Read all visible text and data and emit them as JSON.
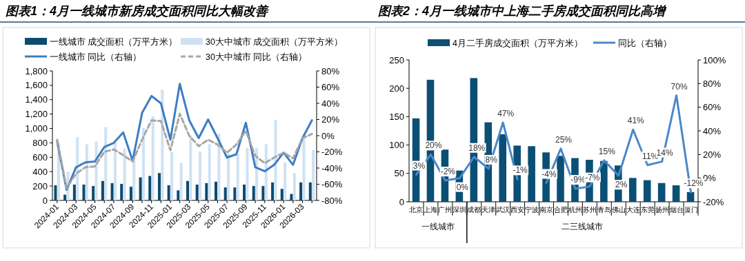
{
  "chart_data": [
    {
      "type": "bar",
      "title": "图表1：4月一线城市新房成交面积同比大幅改善",
      "legend": "top",
      "categories": [
        "2024-01",
        null,
        "2024-03",
        null,
        "2024-05",
        null,
        "2024-07",
        null,
        "2024-09",
        null,
        "2024-11",
        null,
        "2025-01",
        null,
        "2025-03",
        null,
        "2025-05",
        null,
        "2025-07",
        null,
        "2025-09",
        null,
        "2025-11",
        null,
        "2026-01",
        null,
        "2026-03",
        null
      ],
      "ylim": [
        0,
        1800
      ],
      "yticks": [
        0,
        200,
        400,
        600,
        800,
        {
          "value": 1000,
          "label": "1,000"
        },
        {
          "value": 1200,
          "label": "1,200"
        },
        {
          "value": 1400,
          "label": "1,400"
        },
        {
          "value": 1600,
          "label": "1,600"
        },
        {
          "value": 1800,
          "label": "1,800"
        }
      ],
      "y2lim": [
        -80,
        80
      ],
      "y2ticks": [
        {
          "value": -80,
          "label": "-80%"
        },
        {
          "value": -60,
          "label": "-60%"
        },
        {
          "value": -40,
          "label": "-40%"
        },
        {
          "value": -20,
          "label": "-20%"
        },
        {
          "value": 0,
          "label": "0%"
        },
        {
          "value": 20,
          "label": "20%"
        },
        {
          "value": 40,
          "label": "40%"
        },
        {
          "value": 60,
          "label": "60%"
        },
        {
          "value": 80,
          "label": "80%"
        }
      ],
      "series": [
        {
          "name": "一线城市 成交面积（万平方米）",
          "color": "#0d4a70",
          "values": [
            210,
            80,
            220,
            220,
            200,
            270,
            240,
            230,
            190,
            320,
            340,
            380,
            210,
            140,
            270,
            220,
            240,
            260,
            180,
            180,
            220,
            200,
            200,
            250,
            160,
            90,
            250,
            250
          ]
        },
        {
          "name": "30大中城市 成交面积（万平方米）",
          "color": "#cfe2f3",
          "values": [
            800,
            400,
            880,
            780,
            820,
            1020,
            800,
            720,
            690,
            1010,
            1170,
            1540,
            670,
            520,
            900,
            680,
            780,
            930,
            650,
            640,
            730,
            730,
            780,
            1120,
            530,
            380,
            870,
            700
          ]
        },
        {
          "name": "一线城市 同比（右轴）",
          "type": "line",
          "axis": "y2",
          "color": "#3d7dc4",
          "line_style": "solid",
          "values": [
            -7,
            -67,
            -39,
            -33,
            -32,
            -14,
            -9,
            4,
            -31,
            28,
            49,
            40,
            -5,
            64,
            19,
            -3,
            20,
            -3,
            -27,
            -23,
            16,
            -39,
            -44,
            -36,
            -21,
            -36,
            -3,
            19
          ]
        },
        {
          "name": "30大中城市 同比（右轴）",
          "type": "line",
          "axis": "y2",
          "color": "#a6a6a6",
          "line_style": "dashed",
          "values": [
            -5,
            -65,
            -47,
            -39,
            -38,
            -20,
            -17,
            -24,
            -32,
            -5,
            19,
            18,
            -18,
            27,
            0,
            -13,
            -5,
            -11,
            -21,
            -11,
            6,
            -25,
            -34,
            -27,
            -21,
            -28,
            -3,
            2
          ]
        }
      ]
    },
    {
      "type": "bar",
      "title": "图表2：4月一线城市中上海二手房成交面积同比高增",
      "legend": "top",
      "categories": [
        "北京",
        "上海",
        "广州",
        "深圳",
        "成都",
        "天津",
        "武汉",
        "西安",
        "宁波",
        "南京",
        "合肥",
        "杭州",
        "苏州",
        "青岛",
        "佛山",
        "大连",
        "东莞",
        "扬州",
        "烟台",
        "厦门"
      ],
      "annotations": [
        "一线城市",
        "二三线城市"
      ],
      "ylim": [
        0,
        250
      ],
      "yticks": [
        0,
        50,
        100,
        150,
        200,
        250
      ],
      "y2lim": [
        -20,
        100
      ],
      "y2ticks": [
        {
          "value": -20,
          "label": "-20%"
        },
        {
          "value": 0,
          "label": "0%"
        },
        {
          "value": 20,
          "label": "20%"
        },
        {
          "value": 40,
          "label": "40%"
        },
        {
          "value": 60,
          "label": "60%"
        },
        {
          "value": 80,
          "label": "80%"
        },
        {
          "value": 100,
          "label": "100%"
        }
      ],
      "series": [
        {
          "name": "4月二手房成交面积（万平方米）",
          "color": "#0b4f75",
          "values": [
            147,
            215,
            92,
            55,
            218,
            140,
            119,
            99,
            98,
            87,
            81,
            77,
            74,
            72,
            64,
            42,
            38,
            33,
            29,
            17
          ]
        },
        {
          "name": "同比（右轴）",
          "type": "line",
          "axis": "y2",
          "color": "#4a88c8",
          "line_style": "solid",
          "values": [
            3,
            20,
            -2,
            0,
            18,
            8,
            47,
            -1,
            null,
            -4,
            25,
            -9,
            -7,
            15,
            2,
            41,
            11,
            14,
            70,
            -12
          ],
          "value_labels": [
            "3%",
            "20%",
            "-2%",
            "0%",
            "18%",
            "8%",
            "47%",
            "-1%",
            null,
            "-4%",
            "25%",
            "-9%",
            "-7%",
            "15%",
            "2%",
            "41%",
            "11%",
            "14%",
            "70%",
            "-12%"
          ]
        }
      ]
    }
  ]
}
